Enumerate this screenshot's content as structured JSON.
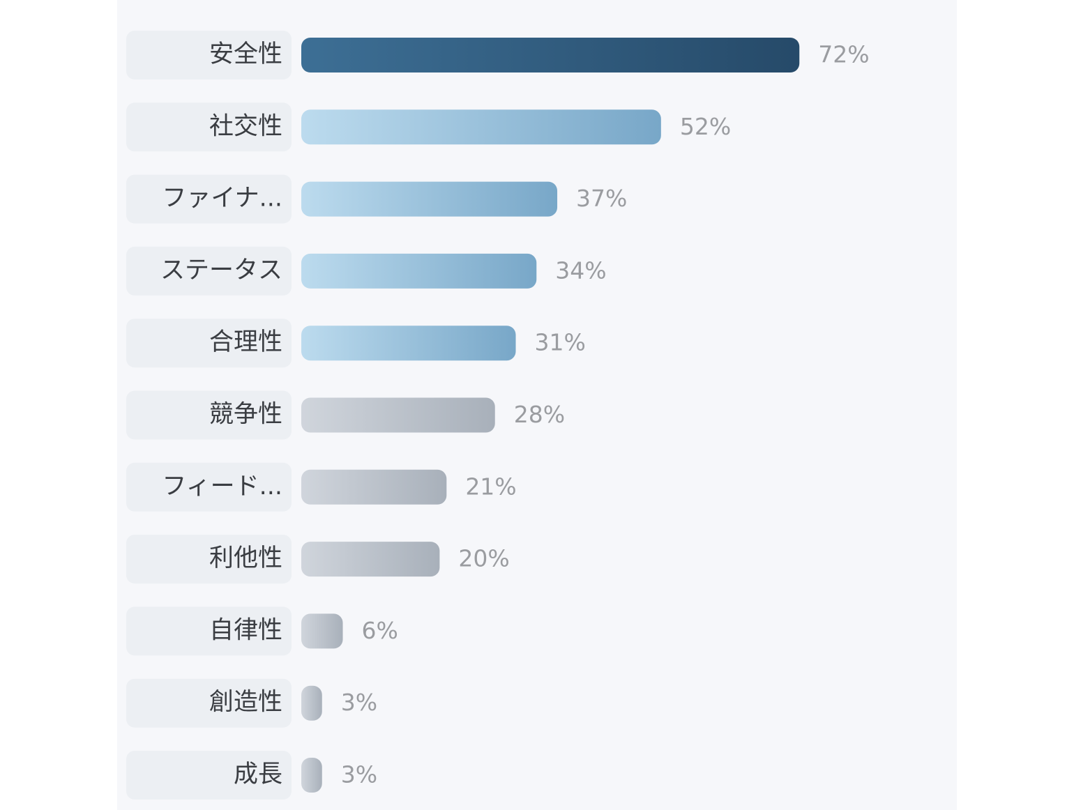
{
  "chart_data": {
    "type": "bar",
    "orientation": "horizontal",
    "categories": [
      "安全性",
      "社交性",
      "ファイナ...",
      "ステータス",
      "合理性",
      "競争性",
      "フィード...",
      "利他性",
      "自律性",
      "創造性",
      "成長"
    ],
    "values": [
      72,
      52,
      37,
      34,
      31,
      28,
      21,
      20,
      6,
      3,
      3
    ],
    "value_labels": [
      "72%",
      "52%",
      "37%",
      "34%",
      "31%",
      "28%",
      "21%",
      "20%",
      "6%",
      "3%",
      "3%"
    ],
    "colors": [
      [
        "#3d6f95",
        "#264a69"
      ],
      [
        "#bcdbee",
        "#78a7c8"
      ],
      [
        "#bcdbee",
        "#78a7c8"
      ],
      [
        "#bcdbee",
        "#78a7c8"
      ],
      [
        "#bcdbee",
        "#78a7c8"
      ],
      [
        "#d0d5dc",
        "#a8b0ba"
      ],
      [
        "#d0d5dc",
        "#a8b0ba"
      ],
      [
        "#d0d5dc",
        "#a8b0ba"
      ],
      [
        "#d0d5dc",
        "#a8b0ba"
      ],
      [
        "#d0d5dc",
        "#a8b0ba"
      ],
      [
        "#d0d5dc",
        "#a8b0ba"
      ]
    ],
    "xlim": [
      0,
      100
    ]
  }
}
